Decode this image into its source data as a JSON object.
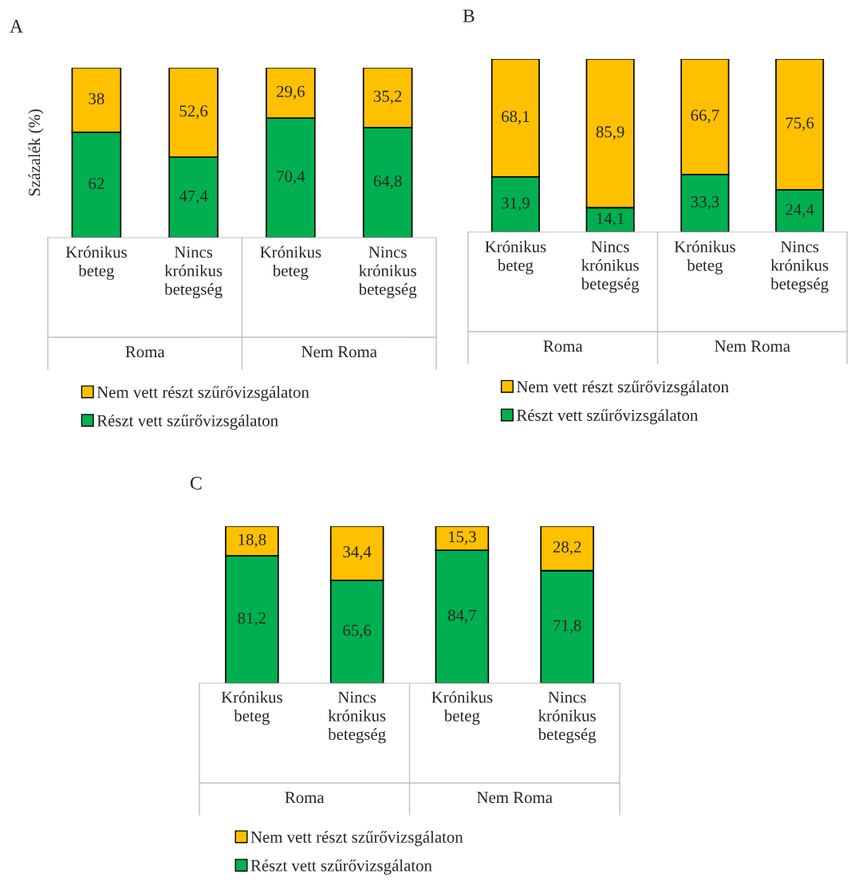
{
  "chart_data": [
    {
      "type": "bar",
      "title": "A",
      "ylabel": "Százalék (%)",
      "stacked": true,
      "legend": "bottom",
      "categories": [
        "Krónikus beteg",
        "Nincs krónikus betegség",
        "Krónikus beteg",
        "Nincs krónikus betegség"
      ],
      "annotations": [
        "Roma",
        "Nem Roma"
      ],
      "series": [
        {
          "name": "Részt vett szűrővizsgálaton",
          "color": "#00b050",
          "values": [
            62,
            47.4,
            70.4,
            64.8
          ],
          "value_labels": [
            "62",
            "47,4",
            "70,4",
            "64,8"
          ]
        },
        {
          "name": "Nem vett részt szűrővizsgálaton",
          "color": "#ffc000",
          "values": [
            38,
            52.6,
            29.6,
            35.2
          ],
          "value_labels": [
            "38",
            "52,6",
            "29,6",
            "35,2"
          ]
        }
      ]
    },
    {
      "type": "bar",
      "title": "B",
      "stacked": true,
      "legend": "bottom",
      "categories": [
        "Krónikus beteg",
        "Nincs krónikus betegség",
        "Krónikus beteg",
        "Nincs krónikus betegség"
      ],
      "annotations": [
        "Roma",
        "Nem Roma"
      ],
      "series": [
        {
          "name": "Részt vett szűrővizsgálaton",
          "color": "#00b050",
          "values": [
            31.9,
            14.1,
            33.3,
            24.4
          ],
          "value_labels": [
            "31,9",
            "14,1",
            "33,3",
            "24,4"
          ]
        },
        {
          "name": "Nem vett részt szűrővizsgálaton",
          "color": "#ffc000",
          "values": [
            68.1,
            85.9,
            66.7,
            75.6
          ],
          "value_labels": [
            "68,1",
            "85,9",
            "66,7",
            "75,6"
          ]
        }
      ]
    },
    {
      "type": "bar",
      "title": "C",
      "stacked": true,
      "legend": "bottom",
      "categories": [
        "Krónikus beteg",
        "Nincs krónikus betegség",
        "Krónikus beteg",
        "Nincs krónikus betegség"
      ],
      "annotations": [
        "Roma",
        "Nem Roma"
      ],
      "series": [
        {
          "name": "Részt vett szűrővizsgálaton",
          "color": "#00b050",
          "values": [
            81.2,
            65.6,
            84.7,
            71.8
          ],
          "value_labels": [
            "81,2",
            "65,6",
            "84,7",
            "71,8"
          ]
        },
        {
          "name": "Nem vett részt szűrővizsgálaton",
          "color": "#ffc000",
          "values": [
            18.8,
            34.4,
            15.3,
            28.2
          ],
          "value_labels": [
            "18,8",
            "34,4",
            "15,3",
            "28,2"
          ]
        }
      ]
    }
  ]
}
